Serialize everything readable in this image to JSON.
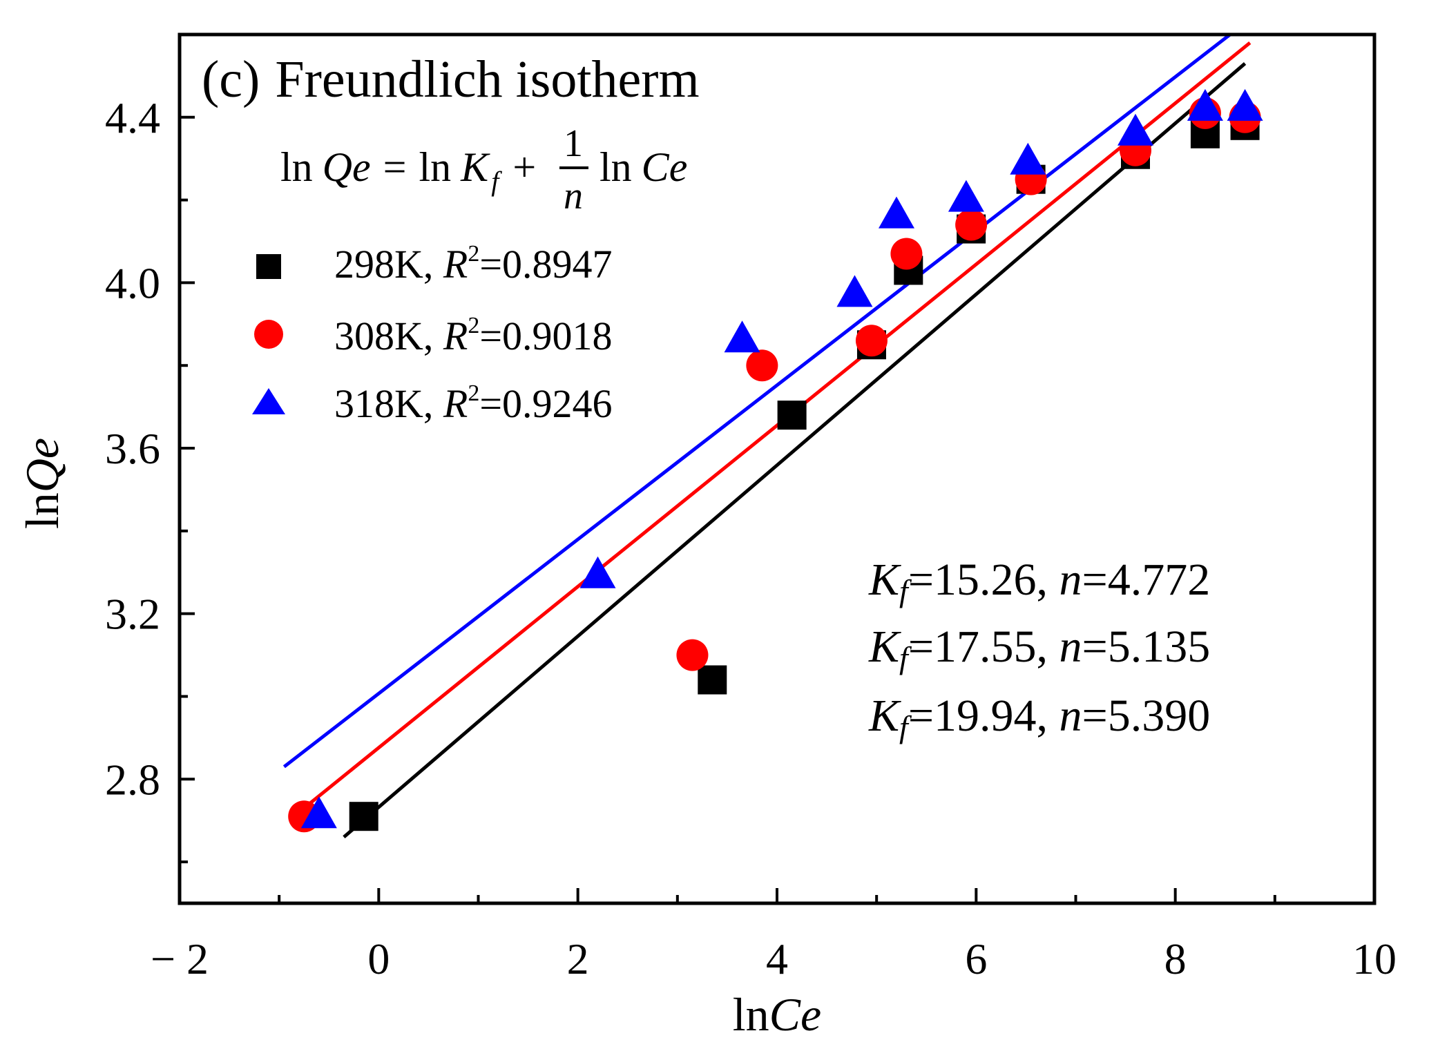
{
  "chart_data": {
    "type": "scatter",
    "panel_label": "(c)",
    "title": "Freundlich isotherm",
    "equation": {
      "lhs_ln": "ln",
      "lhs_var": "Qe",
      "eq_sign": "=",
      "ln1": "ln",
      "kf_var": "K",
      "kf_sub": "f",
      "plus": "+",
      "numerator": "1",
      "denominator": "n",
      "ln2": "ln",
      "ce_var": "Ce"
    },
    "xlabel_prefix": "ln",
    "xlabel_var": "Ce",
    "ylabel_prefix": "ln",
    "ylabel_var": "Qe",
    "xlim": [
      -2,
      10
    ],
    "ylim": [
      2.5,
      4.6
    ],
    "x_ticks": [
      -2,
      0,
      2,
      4,
      6,
      8,
      10
    ],
    "x_tick_labels": [
      "− 2",
      "0",
      "2",
      "4",
      "6",
      "8",
      "10"
    ],
    "y_ticks": [
      2.8,
      3.2,
      3.6,
      4.0,
      4.4
    ],
    "y_tick_labels": [
      "2.8",
      "3.2",
      "3.6",
      "4.0",
      "4.4"
    ],
    "series": [
      {
        "name": "298K",
        "marker": "square",
        "color": "#000000",
        "legend_label": "298K, ",
        "r2_var": "R",
        "r2_exp": "2",
        "r2_value": "=0.8947",
        "x": [
          -0.15,
          3.35,
          4.15,
          4.95,
          5.32,
          5.95,
          6.55,
          7.6,
          8.3,
          8.7
        ],
        "y": [
          2.71,
          3.04,
          3.68,
          3.85,
          4.03,
          4.13,
          4.25,
          4.31,
          4.36,
          4.38
        ],
        "fit_line": {
          "x": [
            -0.35,
            8.7
          ],
          "y": [
            2.66,
            4.53
          ]
        }
      },
      {
        "name": "308K",
        "marker": "circle",
        "color": "#ff0000",
        "legend_label": "308K, ",
        "r2_var": "R",
        "r2_exp": "2",
        "r2_value": "=0.9018",
        "x": [
          -0.75,
          3.15,
          3.85,
          4.95,
          5.3,
          5.95,
          6.55,
          7.6,
          8.3,
          8.7
        ],
        "y": [
          2.71,
          3.1,
          3.8,
          3.86,
          4.07,
          4.14,
          4.25,
          4.32,
          4.41,
          4.4
        ],
        "fit_line": {
          "x": [
            -0.75,
            8.75
          ],
          "y": [
            2.73,
            4.58
          ]
        }
      },
      {
        "name": "318K",
        "marker": "triangle",
        "color": "#0000ff",
        "legend_label": "318K, ",
        "r2_var": "R",
        "r2_exp": "2",
        "r2_value": "=0.9246",
        "x": [
          -0.6,
          2.2,
          3.65,
          4.78,
          5.2,
          5.9,
          6.52,
          7.6,
          8.3,
          8.7
        ],
        "y": [
          2.71,
          3.29,
          3.86,
          3.97,
          4.16,
          4.2,
          4.29,
          4.36,
          4.42,
          4.42
        ],
        "fit_line": {
          "x": [
            -0.95,
            8.55
          ],
          "y": [
            2.83,
            4.6
          ]
        }
      }
    ],
    "annotations": [
      {
        "kf_var": "K",
        "kf_sub": "f",
        "kf_value": "=15.26, ",
        "n_var": "n",
        "n_value": "=4.772"
      },
      {
        "kf_var": "K",
        "kf_sub": "f",
        "kf_value": "=17.55, ",
        "n_var": "n",
        "n_value": "=5.135"
      },
      {
        "kf_var": "K",
        "kf_sub": "f",
        "kf_value": "=19.94, ",
        "n_var": "n",
        "n_value": "=5.390"
      }
    ]
  }
}
